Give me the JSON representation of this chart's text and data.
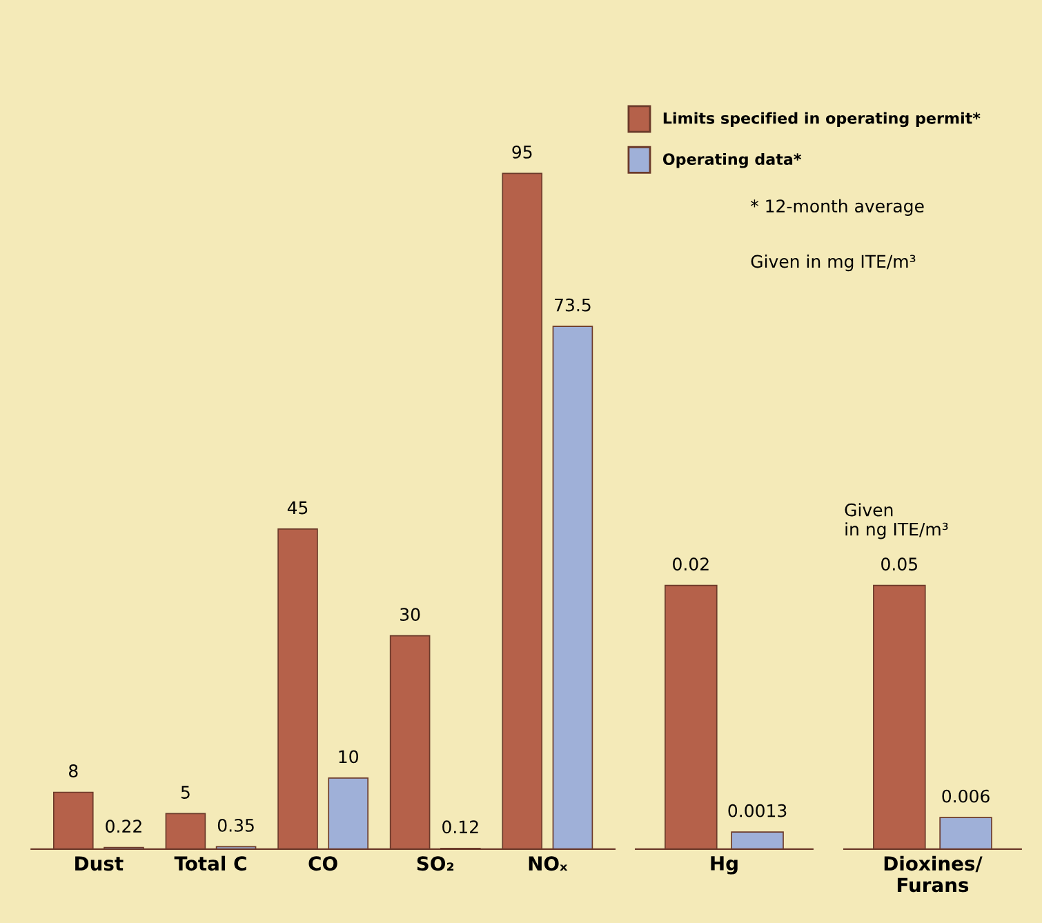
{
  "chart_data": [
    {
      "type": "bar",
      "categories": [
        "Dust",
        "Total C",
        "CO",
        "SO₂",
        "NOₓ"
      ],
      "series": [
        {
          "name": "Limits specified in operating permit*",
          "color": "#b5614a",
          "values": [
            8,
            5,
            45,
            30,
            95
          ]
        },
        {
          "name": "Operating data*",
          "color": "#9fb0d8",
          "values": [
            0.22,
            0.35,
            10,
            0.12,
            73.5
          ]
        }
      ],
      "data_labels": true,
      "tick_labels": "x",
      "legend": "right",
      "annotations": [
        "* 12-month average",
        "Given in mg ITE/m³"
      ]
    },
    {
      "type": "bar",
      "categories": [
        "Hg"
      ],
      "series": [
        {
          "color": "#b5614a",
          "values": [
            0.02
          ]
        },
        {
          "color": "#9fb0d8",
          "values": [
            0.0013
          ]
        }
      ],
      "data_labels": true,
      "tick_labels": "x"
    },
    {
      "type": "bar",
      "categories": [
        "Dioxines/\nFurans"
      ],
      "series": [
        {
          "color": "#b5614a",
          "values": [
            0.05
          ]
        },
        {
          "color": "#9fb0d8",
          "values": [
            0.006
          ]
        }
      ],
      "data_labels": true,
      "tick_labels": "x",
      "annotations": [
        "Given\nin ng ITE/m³"
      ]
    }
  ]
}
